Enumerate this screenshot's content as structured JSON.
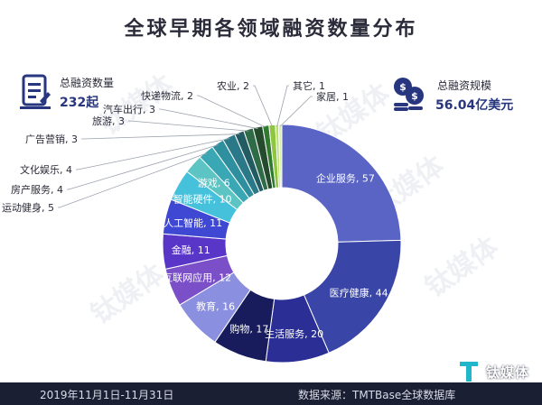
{
  "title": "全球早期各领域融资数量分布",
  "stats": {
    "count_label": "总融资数量",
    "count_value": "232起",
    "scale_label": "总融资规模",
    "scale_value": "56.04亿美元"
  },
  "footer": {
    "date_range": "2019年11月1日-11月31日",
    "source": "数据来源：TMTBase全球数据库"
  },
  "logo": {
    "brand": "钛媒体"
  },
  "watermark": "钛媒体",
  "colors": {
    "title": "#2b2b3a",
    "accent": "#27367f",
    "footer_bg": "#1b1f33"
  },
  "chart_data": {
    "type": "donut",
    "title": "全球早期各领域融资数量分布",
    "unit": "起",
    "series": [
      {
        "label": "企业服务",
        "value": 57,
        "color": "#5a64c4",
        "label_pos": "inside"
      },
      {
        "label": "医疗健康",
        "value": 44,
        "color": "#3a45a8",
        "label_pos": "inside"
      },
      {
        "label": "生活服务",
        "value": 20,
        "color": "#2b2f95",
        "label_pos": "inside"
      },
      {
        "label": "购物",
        "value": 17,
        "color": "#191c5c",
        "label_pos": "inside"
      },
      {
        "label": "教育",
        "value": 16,
        "color": "#8b8fe0",
        "label_pos": "inside"
      },
      {
        "label": "互联网应用",
        "value": 12,
        "color": "#7a4fc8",
        "label_pos": "inside"
      },
      {
        "label": "金融",
        "value": 11,
        "color": "#5a36c8",
        "label_pos": "inside"
      },
      {
        "label": "人工智能",
        "value": 11,
        "color": "#3e48d2",
        "label_pos": "inside"
      },
      {
        "label": "智能硬件",
        "value": 10,
        "color": "#45c1dc",
        "label_pos": "inside"
      },
      {
        "label": "游戏",
        "value": 6,
        "color": "#5cc4c2",
        "label_pos": "inside"
      },
      {
        "label": "运动健身",
        "value": 5,
        "color": "#3aa7b4",
        "label_pos": "outside"
      },
      {
        "label": "房产服务",
        "value": 4,
        "color": "#2e8f9e",
        "label_pos": "outside"
      },
      {
        "label": "文化娱乐",
        "value": 4,
        "color": "#2a7888",
        "label_pos": "outside"
      },
      {
        "label": "广告营销",
        "value": 3,
        "color": "#225c62",
        "label_pos": "outside"
      },
      {
        "label": "旅游",
        "value": 3,
        "color": "#2e6b46",
        "label_pos": "outside"
      },
      {
        "label": "汽车出行",
        "value": 3,
        "color": "#244c2c",
        "label_pos": "outside"
      },
      {
        "label": "快递物流",
        "value": 2,
        "color": "#2f7a2f",
        "label_pos": "outside"
      },
      {
        "label": "农业",
        "value": 2,
        "color": "#8ec63f",
        "label_pos": "outside"
      },
      {
        "label": "其它",
        "value": 1,
        "color": "#b7e06a",
        "label_pos": "outside"
      },
      {
        "label": "家居",
        "value": 1,
        "color": "#d9efb0",
        "label_pos": "outside"
      }
    ]
  }
}
